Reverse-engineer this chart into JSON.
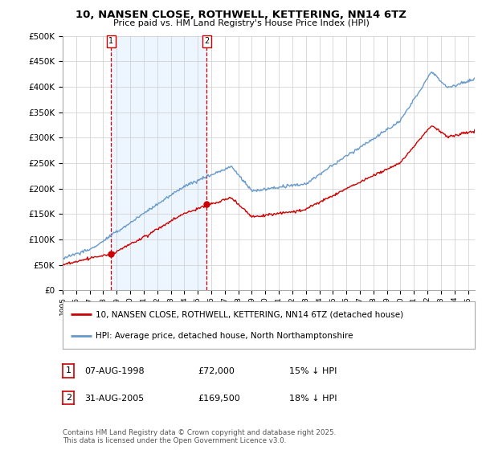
{
  "title": "10, NANSEN CLOSE, ROTHWELL, KETTERING, NN14 6TZ",
  "subtitle": "Price paid vs. HM Land Registry's House Price Index (HPI)",
  "legend_label_red": "10, NANSEN CLOSE, ROTHWELL, KETTERING, NN14 6TZ (detached house)",
  "legend_label_blue": "HPI: Average price, detached house, North Northamptonshire",
  "footer": "Contains HM Land Registry data © Crown copyright and database right 2025.\nThis data is licensed under the Open Government Licence v3.0.",
  "table_rows": [
    {
      "num": "1",
      "date": "07-AUG-1998",
      "price": "£72,000",
      "hpi": "15% ↓ HPI"
    },
    {
      "num": "2",
      "date": "31-AUG-2005",
      "price": "£169,500",
      "hpi": "18% ↓ HPI"
    }
  ],
  "sale_markers": [
    {
      "year": 1998.58,
      "value": 72000,
      "label": "1"
    },
    {
      "year": 2005.67,
      "value": 169500,
      "label": "2"
    }
  ],
  "sale_vlines": [
    1998.58,
    2005.67
  ],
  "color_red": "#cc0000",
  "color_blue": "#6699cc",
  "color_blue_fill": "#ddeeff",
  "color_grid": "#cccccc",
  "ylim": [
    0,
    500000
  ],
  "xlim_start": 1995,
  "xlim_end": 2025.5,
  "background_color": "#ffffff"
}
